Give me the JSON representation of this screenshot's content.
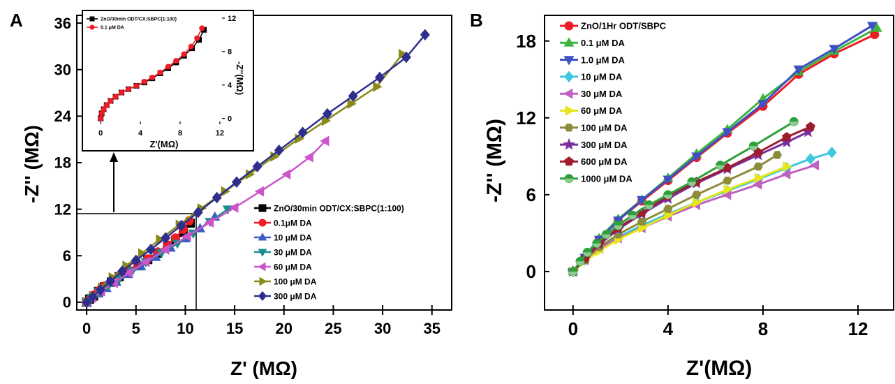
{
  "charts": {
    "A": {
      "panel_label": "A",
      "chart_data": {
        "type": "line",
        "xlabel": "Z' (MΩ)",
        "ylabel": "-Z'' (MΩ)",
        "xlim": [
          -1,
          37
        ],
        "ylim": [
          -1,
          37
        ],
        "xticks": [
          0,
          5,
          10,
          15,
          20,
          25,
          30,
          35
        ],
        "yticks": [
          0,
          6,
          12,
          18,
          24,
          30,
          36
        ],
        "legend_position": "bottom-right",
        "series": [
          {
            "name": "ZnO/30min ODT/CX:SBPC(1:100)",
            "color": "#000000",
            "marker": "square",
            "x": [
              0,
              0.3,
              0.7,
              1.2,
              1.8,
              2.5,
              3.3,
              4.2,
              5.2,
              6.2,
              7.2,
              8.2,
              9.0,
              9.8,
              10.5
            ],
            "y": [
              0,
              0.4,
              0.8,
              1.4,
              2.0,
              2.6,
              3.3,
              4.0,
              4.7,
              5.5,
              6.3,
              7.2,
              8.0,
              9.0,
              10.2
            ]
          },
          {
            "name": "0.1μM DA",
            "color": "#ee1c25",
            "marker": "circle",
            "x": [
              0,
              0.3,
              0.7,
              1.2,
              1.8,
              2.5,
              3.3,
              4.2,
              5.2,
              6.2,
              7.2,
              8.2,
              9.0,
              9.8,
              10.4
            ],
            "y": [
              0,
              0.4,
              0.9,
              1.5,
              2.1,
              2.7,
              3.4,
              4.1,
              4.8,
              5.6,
              6.5,
              7.4,
              8.3,
              9.4,
              10.5
            ]
          },
          {
            "name": "10 μM DA",
            "color": "#3d5cc4",
            "marker": "triangle-up",
            "x": [
              0,
              0.5,
              1.2,
              2.0,
              3.0,
              4.2,
              5.5,
              7.0,
              8.5,
              10.0,
              11.5,
              13.0
            ],
            "y": [
              0,
              0.5,
              1.1,
              1.8,
              2.6,
              3.6,
              4.6,
              5.8,
              7.0,
              8.2,
              9.5,
              11.0
            ]
          },
          {
            "name": "30 μM DA",
            "color": "#1a8c8c",
            "marker": "triangle-down",
            "x": [
              0,
              0.5,
              1.3,
              2.2,
              3.3,
              4.6,
              6.0,
              7.6,
              9.2,
              10.8,
              12.5,
              14.3
            ],
            "y": [
              0,
              0.6,
              1.3,
              2.1,
              3.0,
              4.0,
              5.2,
              6.4,
              7.6,
              8.9,
              10.4,
              12.0
            ]
          },
          {
            "name": "60 μM DA",
            "color": "#cc55cc",
            "marker": "triangle-left",
            "x": [
              0,
              0.6,
              1.5,
              2.8,
              4.3,
              6.0,
              8.0,
              10.2,
              12.5,
              15.0,
              17.6,
              20.3,
              22.6,
              24.2
            ],
            "y": [
              0,
              0.6,
              1.4,
              2.5,
              3.8,
              5.2,
              6.8,
              8.5,
              10.3,
              12.2,
              14.3,
              16.5,
              18.7,
              20.8
            ]
          },
          {
            "name": "100 μM DA",
            "color": "#8a8a1a",
            "marker": "triangle-right",
            "x": [
              0,
              0.6,
              1.5,
              2.6,
              4.0,
              5.6,
              7.4,
              9.4,
              11.6,
              14.0,
              16.5,
              19.0,
              21.5,
              24.2,
              26.8,
              29.4,
              32.0
            ],
            "y": [
              0,
              0.8,
              1.9,
              3.2,
              4.7,
              6.3,
              8.1,
              10.0,
              12.1,
              14.3,
              16.5,
              18.8,
              21.1,
              23.4,
              25.6,
              27.8,
              32.0
            ]
          },
          {
            "name": "300 μM DA",
            "color": "#2e2e8f",
            "marker": "diamond",
            "x": [
              0,
              0.6,
              1.4,
              2.4,
              3.6,
              5.0,
              6.5,
              8.0,
              9.6,
              11.3,
              13.2,
              15.2,
              17.3,
              19.5,
              21.9,
              24.4,
              27.0,
              29.7,
              32.4,
              34.3
            ],
            "y": [
              0,
              0.7,
              1.6,
              2.7,
              4.0,
              5.4,
              6.8,
              8.3,
              9.9,
              11.6,
              13.5,
              15.5,
              17.5,
              19.6,
              21.9,
              24.3,
              26.6,
              29.0,
              31.6,
              34.5
            ]
          }
        ]
      },
      "inset": {
        "chart_data": {
          "type": "line",
          "xlabel": "Z'(MΩ)",
          "ylabel": "-Z''(MΩ)",
          "xlim": [
            -1,
            12.5
          ],
          "ylim": [
            -0.7,
            12.5
          ],
          "xticks": [
            0,
            4,
            8,
            12
          ],
          "yticks": [
            0,
            4,
            8,
            12
          ],
          "legend_position": "top-left",
          "series": [
            {
              "name": "ZnO/30min ODT/CX:SBPC(1:100)",
              "color": "#000000",
              "marker": "square",
              "x": [
                0,
                0.1,
                0.3,
                0.6,
                1.0,
                1.5,
                2.1,
                2.8,
                3.6,
                4.4,
                5.2,
                6.0,
                6.8,
                7.6,
                8.4,
                9.2,
                9.9,
                10.4
              ],
              "y": [
                0,
                0.6,
                1.1,
                1.6,
                2.1,
                2.6,
                3.1,
                3.5,
                3.9,
                4.3,
                4.8,
                5.4,
                6.0,
                6.7,
                7.5,
                8.4,
                9.4,
                10.6
              ]
            },
            {
              "name": "0.1 μM DA",
              "color": "#ee1c25",
              "marker": "circle",
              "x": [
                0,
                0.1,
                0.3,
                0.6,
                1.0,
                1.5,
                2.1,
                2.8,
                3.6,
                4.4,
                5.2,
                6.0,
                6.8,
                7.6,
                8.4,
                9.1,
                9.7,
                10.2
              ],
              "y": [
                0,
                0.6,
                1.1,
                1.6,
                2.1,
                2.6,
                3.1,
                3.5,
                3.9,
                4.4,
                4.9,
                5.5,
                6.2,
                6.9,
                7.7,
                8.6,
                9.6,
                10.8
              ]
            }
          ]
        }
      }
    },
    "B": {
      "panel_label": "B",
      "chart_data": {
        "type": "line",
        "xlabel": "Z'(MΩ)",
        "ylabel": "-Z'' (MΩ)",
        "xlim": [
          -1.2,
          13.5
        ],
        "ylim": [
          -3,
          20
        ],
        "xticks": [
          0,
          4,
          8,
          12
        ],
        "yticks": [
          0,
          6,
          12,
          18
        ],
        "legend_position": "top-left",
        "series": [
          {
            "name": "ZnO/1Hr ODT/SBPC",
            "color": "#ee1c25",
            "marker": "circle",
            "x": [
              0,
              0.5,
              1.1,
              1.9,
              2.9,
              4.0,
              5.2,
              6.5,
              8.0,
              9.5,
              11.0,
              12.7
            ],
            "y": [
              0,
              1.1,
              2.5,
              4.0,
              5.5,
              7.1,
              8.9,
              10.8,
              12.9,
              15.4,
              17.0,
              18.5
            ]
          },
          {
            "name": "0.1 μM DA",
            "color": "#3db43d",
            "marker": "triangle-up",
            "x": [
              0,
              0.5,
              1.1,
              1.9,
              2.9,
              4.0,
              5.2,
              6.5,
              8.0,
              9.5,
              11.0,
              12.8
            ],
            "y": [
              0,
              1.2,
              2.6,
              4.1,
              5.6,
              7.3,
              9.2,
              11.1,
              13.5,
              15.6,
              17.2,
              19.0
            ]
          },
          {
            "name": "1.0 μM DA",
            "color": "#3d50c4",
            "marker": "triangle-down",
            "x": [
              0,
              0.5,
              1.1,
              1.9,
              2.9,
              4.0,
              5.2,
              6.5,
              8.0,
              9.5,
              11.0,
              12.6
            ],
            "y": [
              0,
              1.1,
              2.5,
              4.0,
              5.6,
              7.2,
              9.0,
              10.9,
              13.1,
              15.8,
              17.4,
              19.2
            ]
          },
          {
            "name": "10 μM DA",
            "color": "#3ec8e0",
            "marker": "diamond",
            "x": [
              0,
              0.5,
              1.1,
              1.9,
              2.9,
              4.0,
              5.2,
              6.5,
              7.8,
              9.0,
              10.0,
              10.9
            ],
            "y": [
              0,
              0.9,
              1.8,
              2.7,
              3.6,
              4.5,
              5.4,
              6.3,
              7.2,
              8.1,
              8.8,
              9.3
            ]
          },
          {
            "name": "30 μM DA",
            "color": "#c060c0",
            "marker": "triangle-left",
            "x": [
              0,
              0.5,
              1.1,
              1.9,
              2.9,
              4.0,
              5.2,
              6.5,
              7.8,
              9.0,
              10.2
            ],
            "y": [
              0,
              0.9,
              1.8,
              2.6,
              3.4,
              4.3,
              5.2,
              6.0,
              6.8,
              7.6,
              8.3
            ]
          },
          {
            "name": "60 μM DA",
            "color": "#e6e61a",
            "marker": "triangle-right",
            "x": [
              0,
              0.5,
              1.1,
              1.9,
              2.9,
              4.0,
              5.2,
              6.5,
              7.8,
              9.0
            ],
            "y": [
              0,
              0.8,
              1.6,
              2.5,
              3.4,
              4.4,
              5.4,
              6.4,
              7.3,
              8.2
            ]
          },
          {
            "name": "100 μM DA",
            "color": "#8c8c3a",
            "marker": "hexagon",
            "x": [
              0,
              0.5,
              1.1,
              1.9,
              2.9,
              4.0,
              5.2,
              6.5,
              7.8,
              8.6
            ],
            "y": [
              0,
              0.9,
              1.9,
              2.9,
              3.9,
              4.9,
              6.0,
              7.1,
              8.2,
              9.1
            ]
          },
          {
            "name": "300 μM DA",
            "color": "#7a2e9e",
            "marker": "star",
            "x": [
              0,
              0.5,
              1.1,
              1.9,
              2.9,
              4.0,
              5.2,
              6.5,
              7.8,
              9.0,
              9.9
            ],
            "y": [
              0,
              1.0,
              2.1,
              3.3,
              4.5,
              5.7,
              6.9,
              8.0,
              9.1,
              10.1,
              10.9
            ]
          },
          {
            "name": "600 μM DA",
            "color": "#9e1c2e",
            "marker": "pentagon",
            "x": [
              0,
              0.5,
              1.1,
              1.9,
              2.9,
              4.0,
              5.2,
              6.5,
              7.8,
              9.0,
              10.0
            ],
            "y": [
              0,
              1.0,
              2.2,
              3.4,
              4.6,
              5.9,
              7.0,
              8.1,
              9.3,
              10.5,
              11.3
            ]
          },
          {
            "name": "1000 μM DA",
            "color": "#2ea03a",
            "marker": "circle-half",
            "x": [
              0,
              0.3,
              0.6,
              1.0,
              1.4,
              1.9,
              2.5,
              3.2,
              4.0,
              5.0,
              6.2,
              7.6,
              9.3
            ],
            "y": [
              0,
              0.8,
              1.5,
              2.2,
              2.9,
              3.6,
              4.4,
              5.2,
              6.0,
              7.0,
              8.3,
              9.8,
              11.7
            ]
          }
        ]
      }
    }
  }
}
